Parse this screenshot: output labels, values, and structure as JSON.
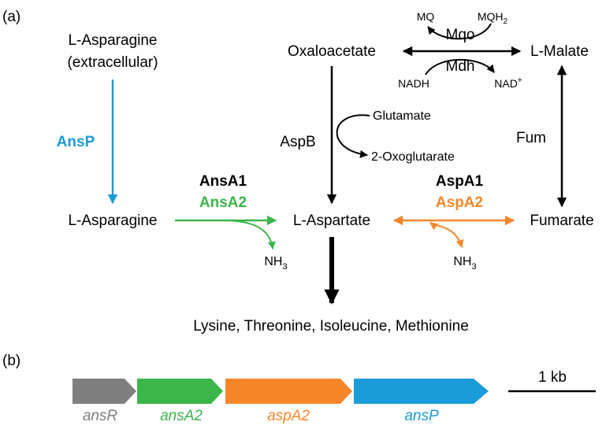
{
  "panel_a": {
    "label": "(a)",
    "molecules": {
      "asn_extra_1": "L-Asparagine",
      "asn_extra_2": "(extracellular)",
      "asparagine": "L-Asparagine",
      "oxaloacetate": "Oxaloacetate",
      "malate": "L-Malate",
      "aspartate": "L-Aspartate",
      "fumarate": "Fumarate",
      "products": "Lysine, Threonine, Isoleucine, Methionine"
    },
    "cofactors": {
      "mq": "MQ",
      "mqh2_base": "MQH",
      "mqh2_sub": "2",
      "nadh": "NADH",
      "nad_base": "NAD",
      "nad_sup": "+",
      "glutamate": "Glutamate",
      "oxoglutarate": "2-Oxoglutarate",
      "nh3_left_base": "NH",
      "nh3_left_sub": "3",
      "nh3_right_base": "NH",
      "nh3_right_sub": "3"
    },
    "enzymes": {
      "ansp": "AnsP",
      "ansa1": "AnsA1",
      "ansa2": "AnsA2",
      "aspa1": "AspA1",
      "aspa2": "AspA2",
      "aspb": "AspB",
      "mqo": "Mqo",
      "mdh": "Mdh",
      "fum": "Fum"
    }
  },
  "panel_b": {
    "label": "(b)",
    "genes": [
      {
        "name": "ansR",
        "color": "#7f7f7f"
      },
      {
        "name": "ansA2",
        "color": "#3cb54a"
      },
      {
        "name": "aspA2",
        "color": "#f7862a"
      },
      {
        "name": "ansP",
        "color": "#1b9bd7"
      }
    ],
    "scale_label": "1 kb"
  },
  "colors": {
    "blue": "#1b9bd7",
    "green": "#3cb54a",
    "orange": "#f7862a",
    "gray": "#7f7f7f",
    "black": "#000000"
  }
}
